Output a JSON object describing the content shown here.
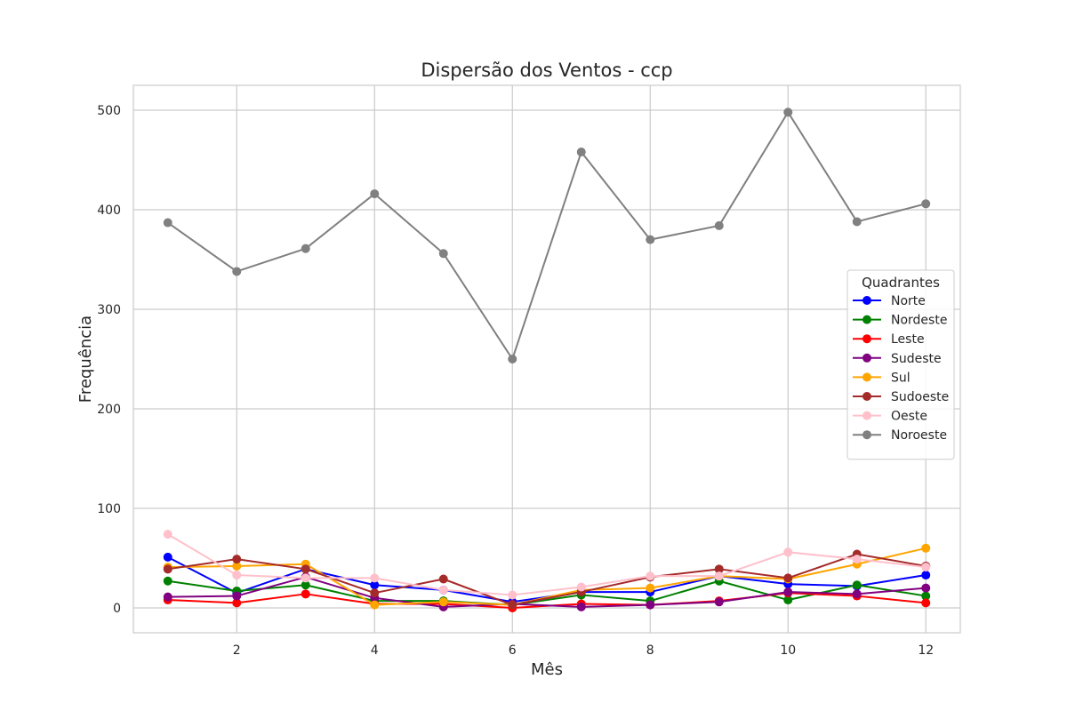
{
  "chart_data": {
    "type": "line",
    "title": "Dispersão dos Ventos - ccp",
    "xlabel": "Mês",
    "ylabel": "Frequência",
    "x": [
      1,
      2,
      3,
      4,
      5,
      6,
      7,
      8,
      9,
      10,
      11,
      12
    ],
    "xlim": [
      0.5,
      12.5
    ],
    "ylim": [
      -25,
      525
    ],
    "xticks": [
      2,
      4,
      6,
      8,
      10,
      12
    ],
    "yticks": [
      0,
      100,
      200,
      300,
      400,
      500
    ],
    "grid": true,
    "legend": {
      "title": "Quadrantes",
      "placement": "center-right"
    },
    "series": [
      {
        "name": "Norte",
        "color": "#0000ff",
        "values": [
          51,
          15,
          39,
          23,
          18,
          6,
          16,
          16,
          32,
          24,
          22,
          33
        ]
      },
      {
        "name": "Nordeste",
        "color": "#008000",
        "values": [
          27,
          17,
          23,
          7,
          7,
          3,
          13,
          7,
          27,
          8,
          23,
          12
        ]
      },
      {
        "name": "Leste",
        "color": "#ff0000",
        "values": [
          8,
          5,
          14,
          4,
          4,
          0,
          4,
          3,
          7,
          15,
          12,
          5
        ]
      },
      {
        "name": "Sudeste",
        "color": "#800080",
        "values": [
          11,
          12,
          31,
          10,
          1,
          4,
          1,
          3,
          6,
          16,
          14,
          20
        ]
      },
      {
        "name": "Sul",
        "color": "#ffa500",
        "values": [
          41,
          42,
          44,
          3,
          6,
          3,
          18,
          20,
          32,
          29,
          44,
          60
        ]
      },
      {
        "name": "Sudoeste",
        "color": "#a52a2a",
        "values": [
          39,
          49,
          39,
          15,
          29,
          3,
          16,
          31,
          39,
          30,
          54,
          42
        ]
      },
      {
        "name": "Oeste",
        "color": "#ffc0cb",
        "values": [
          74,
          33,
          30,
          30,
          18,
          13,
          21,
          32,
          32,
          56,
          49,
          41
        ]
      },
      {
        "name": "Noroeste",
        "color": "#808080",
        "values": [
          387,
          338,
          361,
          416,
          356,
          250,
          458,
          370,
          384,
          498,
          388,
          406
        ]
      }
    ]
  }
}
